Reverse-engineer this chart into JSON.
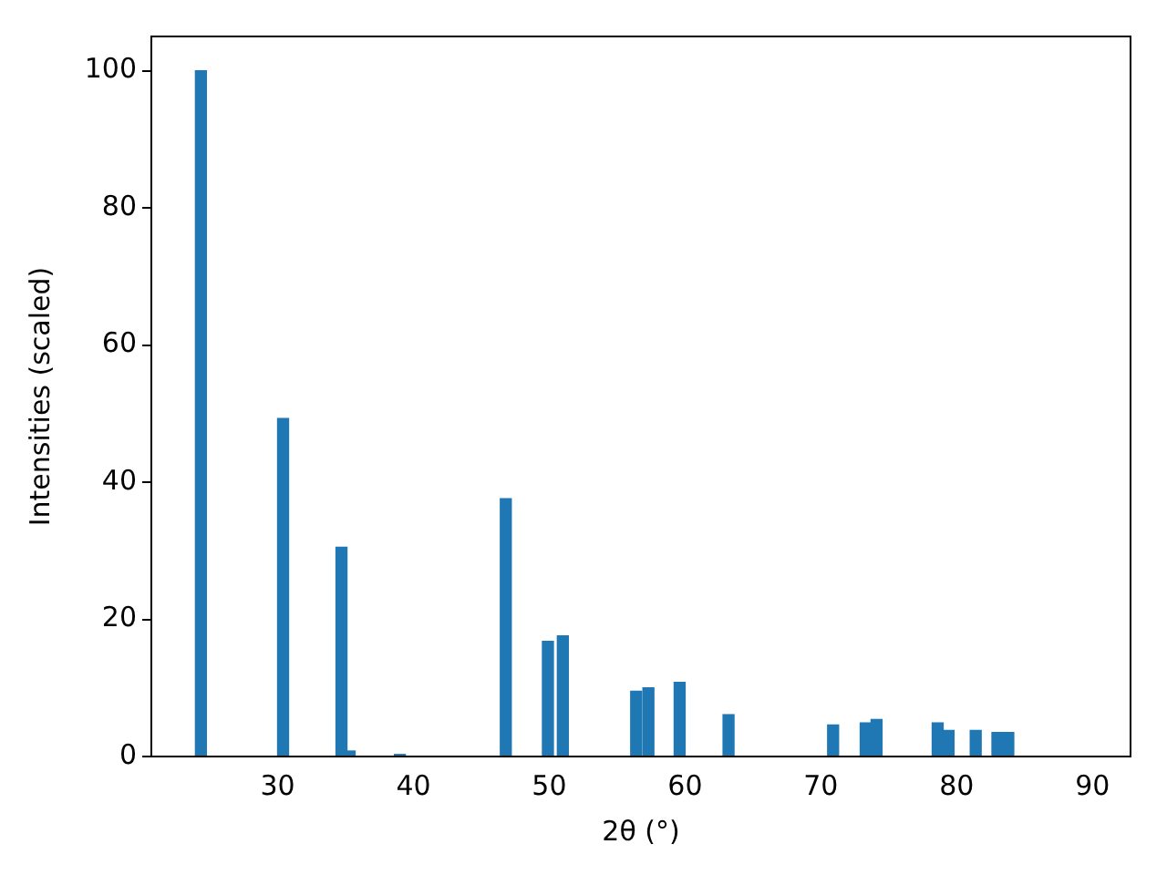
{
  "chart_data": {
    "type": "bar",
    "xlabel": "2θ (°)",
    "ylabel": "Intensities (scaled)",
    "x": [
      24.35,
      30.4,
      34.7,
      35.3,
      39.0,
      46.8,
      49.9,
      51.0,
      56.4,
      57.3,
      59.6,
      63.2,
      70.9,
      73.3,
      74.1,
      78.6,
      79.4,
      81.4,
      83.0,
      83.8
    ],
    "values": [
      100,
      49.3,
      30.5,
      0.8,
      0.3,
      37.6,
      16.8,
      17.6,
      9.5,
      10.0,
      10.8,
      6.1,
      4.6,
      4.9,
      5.4,
      4.9,
      3.8,
      3.8,
      3.5,
      3.5
    ],
    "color": "#1f77b4",
    "xlim": [
      20.7,
      92.8
    ],
    "xticks": [
      30,
      40,
      50,
      60,
      70,
      80,
      90
    ],
    "ylim": [
      0,
      105
    ],
    "yticks": [
      0,
      20,
      40,
      60,
      80,
      100
    ],
    "grid": false,
    "legend": false
  }
}
